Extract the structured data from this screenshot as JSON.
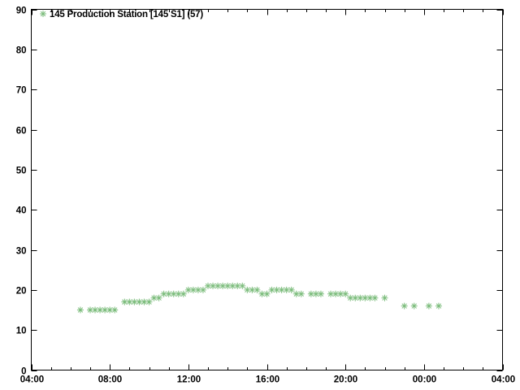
{
  "window": {
    "background": "#ffffff"
  },
  "chart_data": {
    "type": "scatter",
    "title": "",
    "legend_label": "145 Production Station [145 S1] (57)",
    "legend_position": "top-left-inside",
    "marker": "asterisk",
    "marker_color": "#7dbd7d",
    "axis_color": "#000000",
    "grid": false,
    "x_axis": {
      "label": "",
      "start_time": "04:00",
      "hours_span": 24,
      "major_tick_every_hours": 4,
      "minor_tick_every_hours": 1,
      "tick_labels": [
        "04:00",
        "08:00",
        "12:00",
        "16:00",
        "20:00",
        "00:00",
        "04:00"
      ]
    },
    "y_axis": {
      "label": "",
      "min": 0,
      "max": 90,
      "tick_step": 10,
      "tick_labels": [
        "0",
        "10",
        "20",
        "30",
        "40",
        "50",
        "60",
        "70",
        "80",
        "90"
      ]
    },
    "series": [
      {
        "name": "145 Production Station [145 S1] (57)",
        "points": [
          [
            "06:30",
            15
          ],
          [
            "07:00",
            15
          ],
          [
            "07:15",
            15
          ],
          [
            "07:30",
            15
          ],
          [
            "07:45",
            15
          ],
          [
            "08:00",
            15
          ],
          [
            "08:15",
            15
          ],
          [
            "08:45",
            17
          ],
          [
            "09:00",
            17
          ],
          [
            "09:15",
            17
          ],
          [
            "09:30",
            17
          ],
          [
            "09:45",
            17
          ],
          [
            "10:00",
            17
          ],
          [
            "10:15",
            18
          ],
          [
            "10:30",
            18
          ],
          [
            "10:45",
            19
          ],
          [
            "11:00",
            19
          ],
          [
            "11:15",
            19
          ],
          [
            "11:30",
            19
          ],
          [
            "11:45",
            19
          ],
          [
            "12:00",
            20
          ],
          [
            "12:15",
            20
          ],
          [
            "12:30",
            20
          ],
          [
            "12:45",
            20
          ],
          [
            "13:00",
            21
          ],
          [
            "13:15",
            21
          ],
          [
            "13:30",
            21
          ],
          [
            "13:45",
            21
          ],
          [
            "14:00",
            21
          ],
          [
            "14:15",
            21
          ],
          [
            "14:30",
            21
          ],
          [
            "14:45",
            21
          ],
          [
            "15:00",
            20
          ],
          [
            "15:15",
            20
          ],
          [
            "15:30",
            20
          ],
          [
            "15:45",
            19
          ],
          [
            "16:00",
            19
          ],
          [
            "16:15",
            20
          ],
          [
            "16:30",
            20
          ],
          [
            "16:45",
            20
          ],
          [
            "17:00",
            20
          ],
          [
            "17:15",
            20
          ],
          [
            "17:30",
            19
          ],
          [
            "17:45",
            19
          ],
          [
            "18:15",
            19
          ],
          [
            "18:30",
            19
          ],
          [
            "18:45",
            19
          ],
          [
            "19:15",
            19
          ],
          [
            "19:30",
            19
          ],
          [
            "19:45",
            19
          ],
          [
            "20:00",
            19
          ],
          [
            "20:15",
            18
          ],
          [
            "20:30",
            18
          ],
          [
            "20:45",
            18
          ],
          [
            "21:00",
            18
          ],
          [
            "21:15",
            18
          ],
          [
            "21:30",
            18
          ],
          [
            "22:00",
            18
          ],
          [
            "23:00",
            16
          ],
          [
            "23:30",
            16
          ],
          [
            "00:15",
            16
          ],
          [
            "00:45",
            16
          ]
        ]
      }
    ]
  }
}
